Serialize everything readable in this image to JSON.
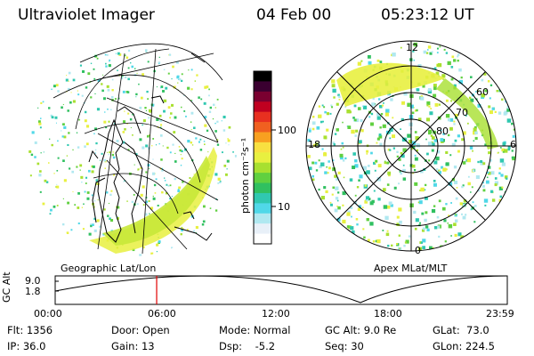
{
  "header": {
    "instrument": "Ultraviolet Imager",
    "date": "04 Feb 00",
    "time": "05:23:12 UT"
  },
  "colorbar": {
    "unit_label": "photon cm⁻²s⁻¹",
    "ticks": [
      "100",
      "10"
    ],
    "colors": [
      "#000000",
      "#3a0030",
      "#7a0030",
      "#c00020",
      "#e83020",
      "#f06020",
      "#f8a020",
      "#f8e040",
      "#e8f040",
      "#a8e030",
      "#60d040",
      "#30c060",
      "#30c8b0",
      "#50d8e8",
      "#b0e8f0",
      "#e8f0f8",
      "#ffffff"
    ]
  },
  "left_map": {
    "caption": "Geographic Lat/Lon"
  },
  "right_dial": {
    "caption": "Apex MLat/MLT",
    "mlt_labels": [
      "12",
      "18",
      "6",
      "0"
    ],
    "mlat_labels": [
      "60",
      "70",
      "80"
    ]
  },
  "timeline": {
    "y_label": "GC Alt",
    "y_ticks": [
      "9.0",
      "1.8"
    ],
    "x_ticks": [
      "00:00",
      "06:00",
      "12:00",
      "18:00",
      "23:59"
    ],
    "marker_time": "05:23"
  },
  "info": {
    "col1": [
      "Flt: 1356",
      "IP: 36.0"
    ],
    "col2": [
      "Door: Open",
      "Gain: 13"
    ],
    "col3": [
      "Mode: Normal",
      "Dsp:    -5.2"
    ],
    "col4": [
      "GC Alt: 9.0 Re",
      "Seq: 30"
    ],
    "col5": [
      "GLat:  73.0",
      "GLon: 224.5"
    ]
  }
}
